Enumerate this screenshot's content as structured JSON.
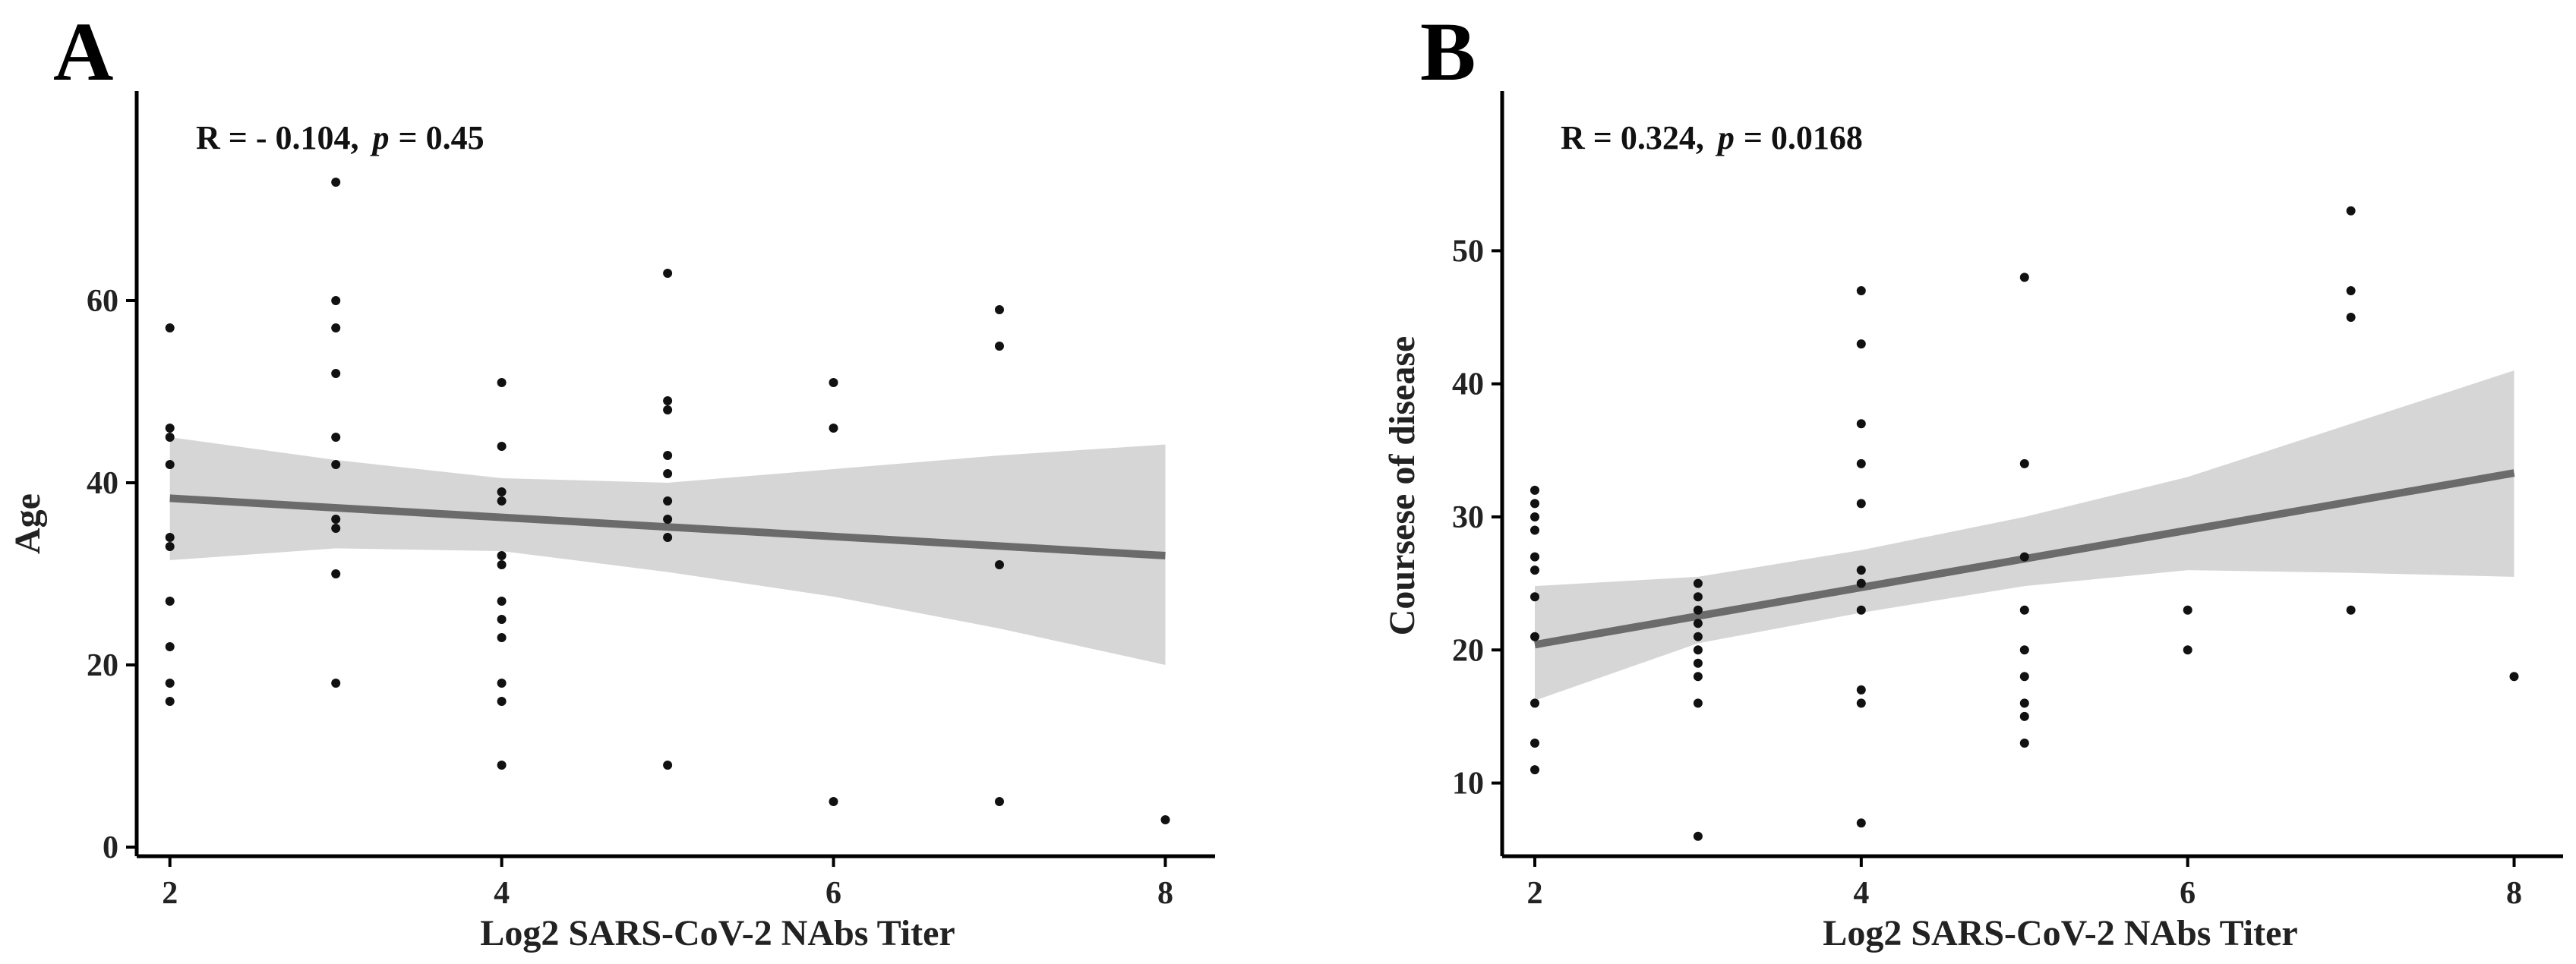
{
  "colors": {
    "points": "#111111",
    "fit_line": "#6b6b6b",
    "band": "#d6d6d6",
    "axes": "#000000"
  },
  "chart_data": [
    {
      "panel": "A",
      "type": "scatter",
      "annotation": {
        "r_text": "R = - 0.104,",
        "p_symbol": "p",
        "p_value": "= 0.45"
      },
      "xlabel": "Log2 SARS-CoV-2 NAbs Titer",
      "ylabel": "Age",
      "xlim": [
        1.8,
        8.3
      ],
      "ylim": [
        -1,
        83
      ],
      "xticks": [
        2,
        4,
        6,
        8
      ],
      "yticks": [
        0,
        20,
        40,
        60
      ],
      "grid": false,
      "points": [
        [
          2,
          57
        ],
        [
          2,
          46
        ],
        [
          2,
          45
        ],
        [
          2,
          42
        ],
        [
          2,
          34
        ],
        [
          2,
          33
        ],
        [
          2,
          27
        ],
        [
          2,
          22
        ],
        [
          2,
          18
        ],
        [
          2,
          16
        ],
        [
          3,
          73
        ],
        [
          3,
          60
        ],
        [
          3,
          57
        ],
        [
          3,
          52
        ],
        [
          3,
          45
        ],
        [
          3,
          42
        ],
        [
          3,
          36
        ],
        [
          3,
          35
        ],
        [
          3,
          30
        ],
        [
          3,
          18
        ],
        [
          4,
          51
        ],
        [
          4,
          44
        ],
        [
          4,
          39
        ],
        [
          4,
          38
        ],
        [
          4,
          32
        ],
        [
          4,
          31
        ],
        [
          4,
          27
        ],
        [
          4,
          25
        ],
        [
          4,
          23
        ],
        [
          4,
          18
        ],
        [
          4,
          16
        ],
        [
          4,
          9
        ],
        [
          5,
          63
        ],
        [
          5,
          49
        ],
        [
          5,
          48
        ],
        [
          5,
          43
        ],
        [
          5,
          41
        ],
        [
          5,
          38
        ],
        [
          5,
          36
        ],
        [
          5,
          34
        ],
        [
          5,
          9
        ],
        [
          6,
          51
        ],
        [
          6,
          46
        ],
        [
          6,
          5
        ],
        [
          7,
          59
        ],
        [
          7,
          55
        ],
        [
          7,
          31
        ],
        [
          7,
          5
        ],
        [
          8,
          3
        ]
      ],
      "fit": {
        "x": [
          2,
          8
        ],
        "y": [
          38.3,
          32.0
        ]
      },
      "ci_band": {
        "x": [
          2,
          3,
          4,
          5,
          6,
          7,
          8
        ],
        "lower": [
          31.5,
          32.8,
          32.5,
          30.2,
          27.5,
          24.0,
          20.0
        ],
        "upper": [
          45.0,
          42.5,
          40.5,
          40.0,
          41.5,
          43.0,
          44.2
        ]
      }
    },
    {
      "panel": "B",
      "type": "scatter",
      "annotation": {
        "r_text": "R = 0.324,",
        "p_symbol": "p",
        "p_value": "= 0.0168"
      },
      "xlabel": "Log2 SARS-CoV-2 NAbs Titer",
      "ylabel": "Coursese of disease",
      "xlim": [
        1.8,
        8.3
      ],
      "ylim": [
        4.5,
        62
      ],
      "xticks": [
        2,
        4,
        6,
        8
      ],
      "yticks": [
        10,
        20,
        30,
        40,
        50
      ],
      "grid": false,
      "points": [
        [
          2,
          32
        ],
        [
          2,
          31
        ],
        [
          2,
          30
        ],
        [
          2,
          29
        ],
        [
          2,
          27
        ],
        [
          2,
          26
        ],
        [
          2,
          24
        ],
        [
          2,
          21
        ],
        [
          2,
          16
        ],
        [
          2,
          13
        ],
        [
          2,
          11
        ],
        [
          3,
          25
        ],
        [
          3,
          24
        ],
        [
          3,
          23
        ],
        [
          3,
          22
        ],
        [
          3,
          21
        ],
        [
          3,
          20
        ],
        [
          3,
          19
        ],
        [
          3,
          18
        ],
        [
          3,
          16
        ],
        [
          3,
          6
        ],
        [
          4,
          47
        ],
        [
          4,
          43
        ],
        [
          4,
          37
        ],
        [
          4,
          34
        ],
        [
          4,
          31
        ],
        [
          4,
          26
        ],
        [
          4,
          25
        ],
        [
          4,
          23
        ],
        [
          4,
          17
        ],
        [
          4,
          16
        ],
        [
          4,
          7
        ],
        [
          5,
          48
        ],
        [
          5,
          34
        ],
        [
          5,
          27
        ],
        [
          5,
          23
        ],
        [
          5,
          20
        ],
        [
          5,
          18
        ],
        [
          5,
          16
        ],
        [
          5,
          15
        ],
        [
          5,
          13
        ],
        [
          6,
          23
        ],
        [
          6,
          20
        ],
        [
          7,
          53
        ],
        [
          7,
          47
        ],
        [
          7,
          45
        ],
        [
          7,
          23
        ],
        [
          8,
          18
        ]
      ],
      "fit": {
        "x": [
          2,
          8
        ],
        "y": [
          20.4,
          33.3
        ]
      },
      "ci_band": {
        "x": [
          2,
          3,
          4,
          5,
          6,
          7,
          8
        ],
        "lower": [
          16.2,
          20.5,
          22.8,
          24.8,
          26.0,
          25.8,
          25.5
        ],
        "upper": [
          24.8,
          25.5,
          27.5,
          30.0,
          33.0,
          37.0,
          41.0
        ]
      }
    }
  ]
}
